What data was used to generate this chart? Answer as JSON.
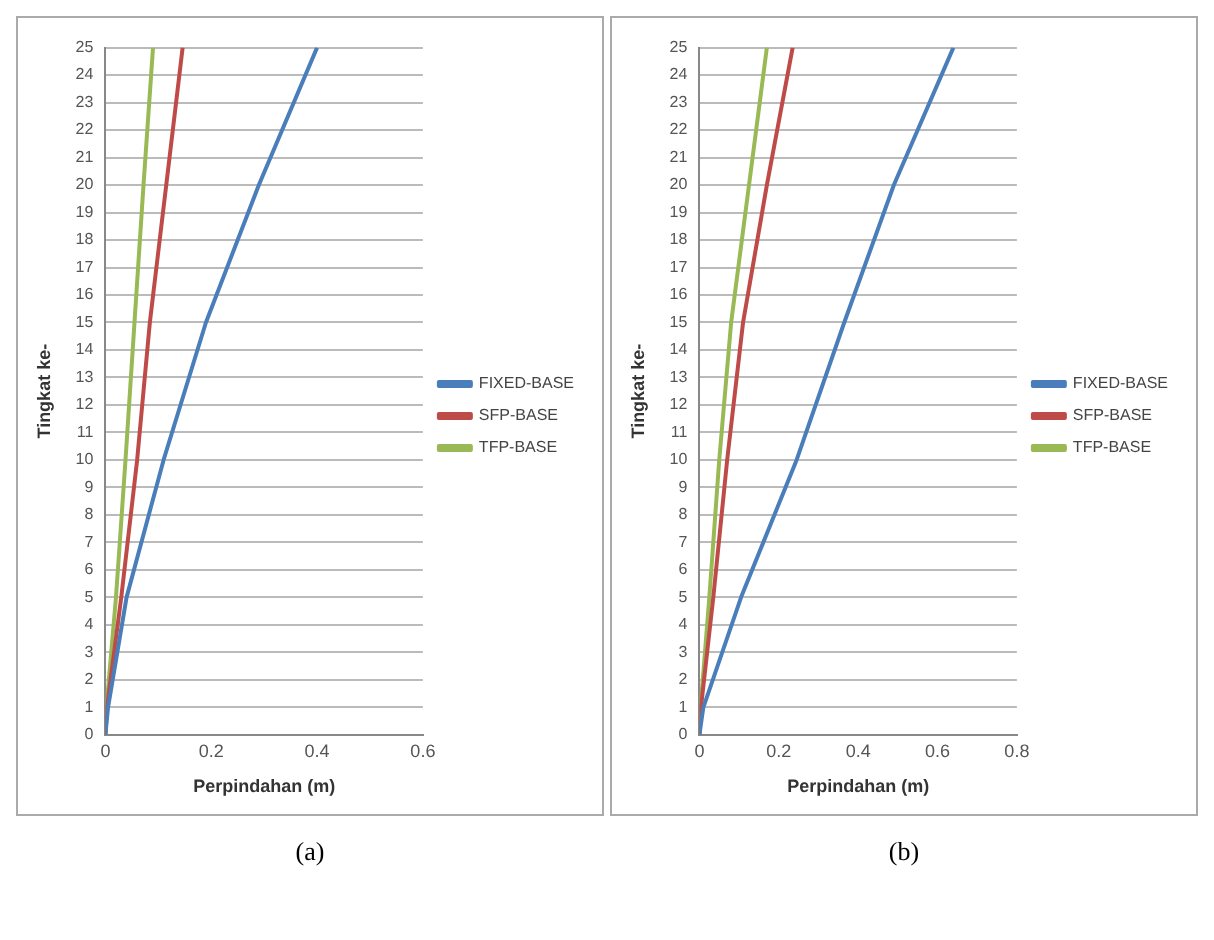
{
  "chart_data": [
    {
      "type": "line",
      "xlabel": "Perpindahan (m)",
      "ylabel": "Tingkat ke-",
      "annotations": [
        "(a)"
      ],
      "xlim": [
        0,
        0.6
      ],
      "xticks": [
        0,
        0.2,
        0.4,
        0.6
      ],
      "ylim": [
        0,
        25
      ],
      "yticks": [
        0,
        1,
        2,
        3,
        4,
        5,
        6,
        7,
        8,
        9,
        10,
        11,
        12,
        13,
        14,
        15,
        16,
        17,
        18,
        19,
        20,
        21,
        22,
        23,
        24,
        25
      ],
      "grid": "y",
      "legend": "right",
      "marker": "none",
      "series": [
        {
          "name": "FIXED-BASE",
          "color": "#4a7ebb",
          "x": [
            0,
            0.005,
            0.04,
            0.11,
            0.19,
            0.29,
            0.4
          ],
          "values": [
            0,
            1,
            5,
            10,
            15,
            20,
            25
          ]
        },
        {
          "name": "SFP-BASE",
          "color": "#be4b48",
          "x": [
            0,
            0.003,
            0.03,
            0.06,
            0.084,
            0.115,
            0.146
          ],
          "values": [
            0,
            1,
            5,
            10,
            15,
            20,
            25
          ]
        },
        {
          "name": "TFP-BASE",
          "color": "#98b954",
          "x": [
            0,
            0.002,
            0.02,
            0.038,
            0.055,
            0.072,
            0.09
          ],
          "values": [
            0,
            1,
            5,
            10,
            15,
            20,
            25
          ]
        }
      ]
    },
    {
      "type": "line",
      "xlabel": "Perpindahan (m)",
      "ylabel": "Tingkat ke-",
      "annotations": [
        "(b)"
      ],
      "xlim": [
        0,
        0.8
      ],
      "xticks": [
        0,
        0.2,
        0.4,
        0.6,
        0.8
      ],
      "ylim": [
        0,
        25
      ],
      "yticks": [
        0,
        1,
        2,
        3,
        4,
        5,
        6,
        7,
        8,
        9,
        10,
        11,
        12,
        13,
        14,
        15,
        16,
        17,
        18,
        19,
        20,
        21,
        22,
        23,
        24,
        25
      ],
      "grid": "y",
      "legend": "right",
      "marker": "none",
      "series": [
        {
          "name": "FIXED-BASE",
          "color": "#4a7ebb",
          "x": [
            0,
            0.01,
            0.105,
            0.245,
            0.365,
            0.49,
            0.64
          ],
          "values": [
            0,
            1,
            5,
            10,
            15,
            20,
            25
          ]
        },
        {
          "name": "SFP-BASE",
          "color": "#be4b48",
          "x": [
            0,
            0.004,
            0.035,
            0.07,
            0.11,
            0.17,
            0.235
          ],
          "values": [
            0,
            1,
            5,
            10,
            15,
            20,
            25
          ]
        },
        {
          "name": "TFP-BASE",
          "color": "#98b954",
          "x": [
            0,
            0.003,
            0.025,
            0.05,
            0.08,
            0.125,
            0.17
          ],
          "values": [
            0,
            1,
            5,
            10,
            15,
            20,
            25
          ]
        }
      ]
    }
  ]
}
